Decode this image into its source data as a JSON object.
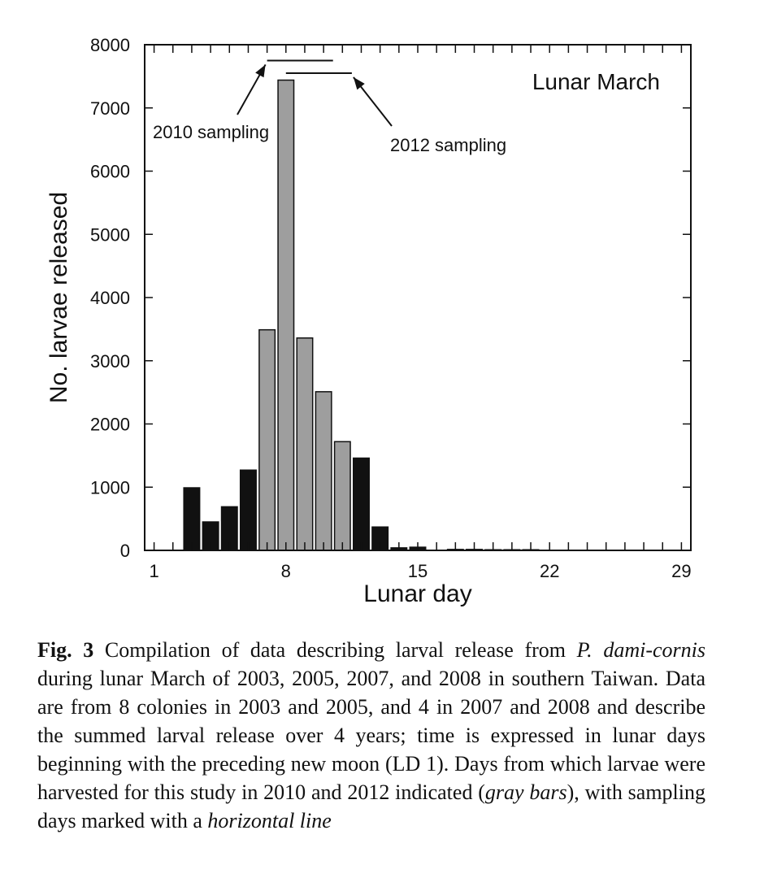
{
  "chart_data": {
    "type": "bar",
    "title": "Lunar March",
    "xlabel": "Lunar day",
    "ylabel": "No. larvae released",
    "xlim": [
      0.5,
      29.5
    ],
    "ylim": [
      0,
      8000
    ],
    "xticks_labeled": [
      1,
      8,
      15,
      22,
      29
    ],
    "yticks": [
      0,
      1000,
      2000,
      3000,
      4000,
      5000,
      6000,
      7000,
      8000
    ],
    "bars": [
      {
        "day": 3,
        "value": 990,
        "color": "black"
      },
      {
        "day": 4,
        "value": 450,
        "color": "black"
      },
      {
        "day": 5,
        "value": 690,
        "color": "black"
      },
      {
        "day": 6,
        "value": 1270,
        "color": "black"
      },
      {
        "day": 7,
        "value": 3490,
        "color": "gray"
      },
      {
        "day": 8,
        "value": 7440,
        "color": "gray"
      },
      {
        "day": 9,
        "value": 3360,
        "color": "gray"
      },
      {
        "day": 10,
        "value": 2510,
        "color": "gray"
      },
      {
        "day": 11,
        "value": 1720,
        "color": "gray"
      },
      {
        "day": 12,
        "value": 1460,
        "color": "black"
      },
      {
        "day": 13,
        "value": 370,
        "color": "black"
      },
      {
        "day": 14,
        "value": 40,
        "color": "black"
      },
      {
        "day": 15,
        "value": 50,
        "color": "black"
      },
      {
        "day": 17,
        "value": 15,
        "color": "black"
      },
      {
        "day": 18,
        "value": 15,
        "color": "black"
      },
      {
        "day": 19,
        "value": 10,
        "color": "black"
      },
      {
        "day": 20,
        "value": 10,
        "color": "black"
      },
      {
        "day": 21,
        "value": 10,
        "color": "black"
      }
    ],
    "sampling": [
      {
        "label": "2010 sampling",
        "start_day": 7,
        "end_day": 10.5,
        "y": 7750
      },
      {
        "label": "2012 sampling",
        "start_day": 8,
        "end_day": 11.5,
        "y": 7550
      }
    ],
    "colors": {
      "black": "#111111",
      "gray": "#9e9e9e"
    }
  },
  "caption": {
    "fig_label": "Fig. 3",
    "text_1": " Compilation of data describing larval release from ",
    "species_1": "P. dami-cornis",
    "text_2": " during lunar March of 2003, 2005, 2007, and 2008 in southern Taiwan. Data are from 8 colonies in 2003 and 2005, and 4 in 2007 and 2008 and describe the summed larval release over 4 years; time is expressed in lunar days beginning with the preceding new moon (LD 1). Days from which larvae were harvested for this study in 2010 and 2012 indicated (",
    "gray_bars": "gray bars",
    "text_3": "), with sampling days marked with a ",
    "horizontal_line": "horizontal line"
  }
}
